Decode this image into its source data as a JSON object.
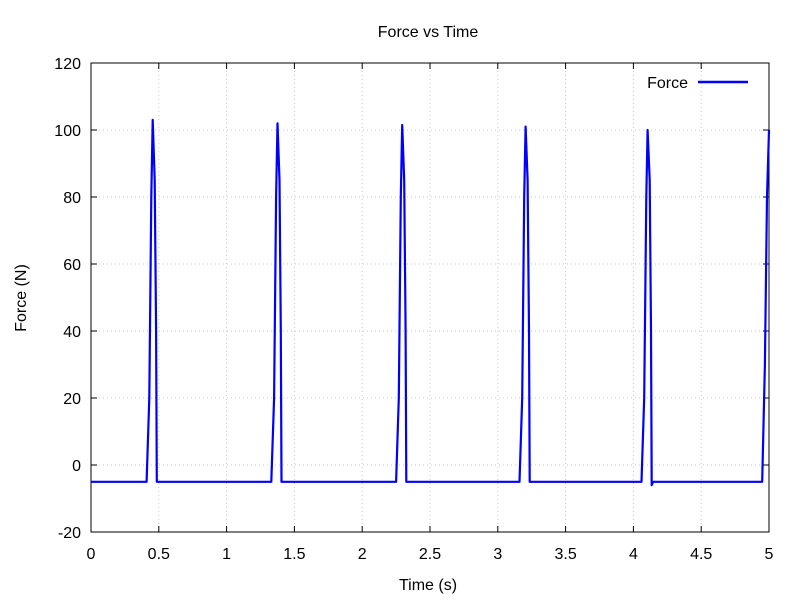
{
  "chart_data": {
    "type": "line",
    "title": "Force vs Time",
    "xlabel": "Time (s)",
    "ylabel": "Force (N)",
    "xlim": [
      0,
      5
    ],
    "ylim": [
      -20,
      120
    ],
    "xticks": [
      0,
      0.5,
      1,
      1.5,
      2,
      2.5,
      3,
      3.5,
      4,
      4.5,
      5
    ],
    "xtick_labels": [
      "0",
      "0.5",
      "1",
      "1.5",
      "2",
      "2.5",
      "3",
      "3.5",
      "4",
      "4.5",
      "5"
    ],
    "yticks": [
      -20,
      0,
      20,
      40,
      60,
      80,
      100,
      120
    ],
    "ytick_labels": [
      "-20",
      "0",
      "20",
      "40",
      "60",
      "80",
      "100",
      "120"
    ],
    "grid": true,
    "legend_position": "top-right",
    "series": [
      {
        "name": "Force",
        "color": "#0000ff",
        "points": [
          [
            0,
            -5
          ],
          [
            0.41,
            -5
          ],
          [
            0.43,
            20
          ],
          [
            0.445,
            80
          ],
          [
            0.455,
            103
          ],
          [
            0.47,
            85
          ],
          [
            0.48,
            40
          ],
          [
            0.485,
            -5
          ],
          [
            1.33,
            -5
          ],
          [
            1.35,
            20
          ],
          [
            1.365,
            80
          ],
          [
            1.375,
            102
          ],
          [
            1.39,
            85
          ],
          [
            1.4,
            40
          ],
          [
            1.405,
            -5
          ],
          [
            2.25,
            -5
          ],
          [
            2.27,
            20
          ],
          [
            2.285,
            80
          ],
          [
            2.295,
            101.5
          ],
          [
            2.31,
            85
          ],
          [
            2.32,
            40
          ],
          [
            2.325,
            -5
          ],
          [
            3.16,
            -5
          ],
          [
            3.18,
            20
          ],
          [
            3.195,
            80
          ],
          [
            3.205,
            101
          ],
          [
            3.22,
            85
          ],
          [
            3.23,
            40
          ],
          [
            3.235,
            -5
          ],
          [
            4.06,
            -5
          ],
          [
            4.08,
            20
          ],
          [
            4.095,
            80
          ],
          [
            4.105,
            100
          ],
          [
            4.12,
            85
          ],
          [
            4.13,
            40
          ],
          [
            4.135,
            -6
          ],
          [
            4.145,
            -5
          ],
          [
            4.95,
            -5
          ],
          [
            4.97,
            30
          ],
          [
            4.985,
            80
          ],
          [
            5.0,
            100
          ]
        ]
      }
    ]
  }
}
